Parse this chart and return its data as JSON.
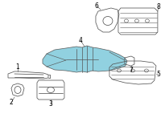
{
  "background_color": "#ffffff",
  "line_color": "#555555",
  "highlight_color": "#85ccdd",
  "label_color": "#000000",
  "fig_width": 2.0,
  "fig_height": 1.47,
  "dpi": 100
}
